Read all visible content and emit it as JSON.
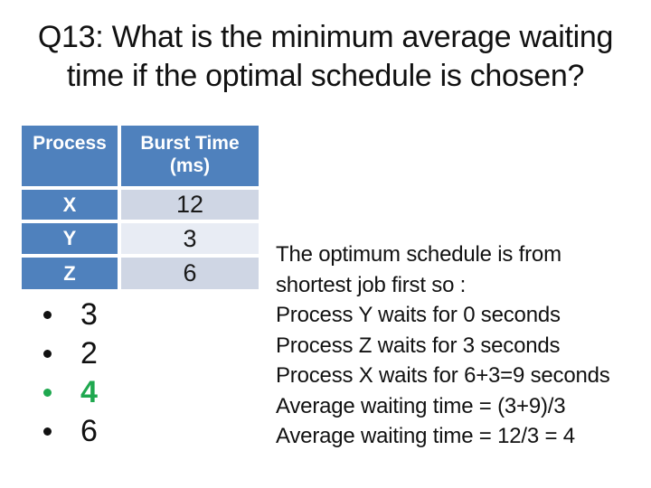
{
  "slide": {
    "title": "Q13: What is the minimum average waiting time if the optimal schedule is chosen?",
    "title_lines": [
      "Q13: What is the minimum average waiting",
      "time if the optimal schedule is chosen?"
    ],
    "process_table": {
      "columns": [
        "Process",
        "Burst Time (ms)"
      ],
      "rows": [
        {
          "process": "X",
          "burst_time": "12"
        },
        {
          "process": "Y",
          "burst_time": "3"
        },
        {
          "process": "Z",
          "burst_time": "6"
        }
      ]
    },
    "answer_bullets": {
      "items": [
        {
          "label": "3",
          "highlighted": false
        },
        {
          "label": "2",
          "highlighted": false
        },
        {
          "label": "4",
          "highlighted": true
        },
        {
          "label": "6",
          "highlighted": false
        }
      ]
    },
    "explanation": {
      "lines": [
        "The optimum schedule is from",
        "shortest job first so :",
        "Process Y waits for 0 seconds",
        "Process Z waits for 3 seconds",
        "Process X waits for 6+3=9 seconds",
        "Average waiting time = (3+9)/3",
        "Average waiting time = 12/3 = 4"
      ]
    },
    "colors": {
      "background": "#FFFFFF",
      "body_text": "#111111",
      "table_header_blue": "#4F81BD",
      "table_header_text": "#FFFFFF",
      "row_band_dark": "#CFD6E4",
      "row_band_light": "#E8ECF4",
      "highlight_green": "#1FA84F"
    }
  }
}
